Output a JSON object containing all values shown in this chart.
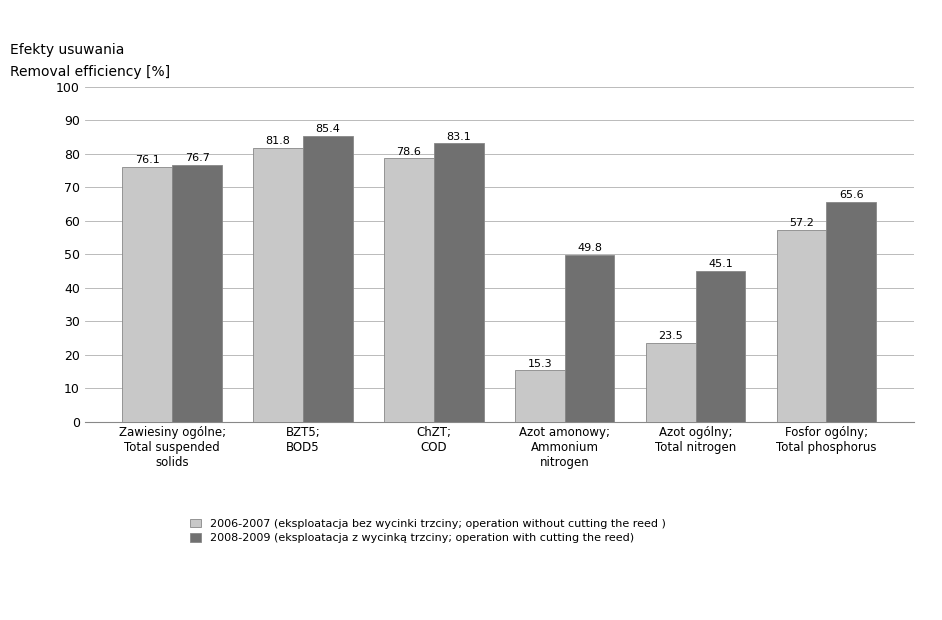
{
  "title_line1": "Efekty usuwania",
  "title_line2": "Removal efficiency [%]",
  "categories": [
    "Zawiesiny ogólne;\nTotal suspended\nsolids",
    "BZT5;\nBOD5",
    "ChZT;\nCOD",
    "Azot amonowy;\nAmmonium\nnitrogen",
    "Azot ogólny;\nTotal nitrogen",
    "Fosfor ogólny;\nTotal phosphorus"
  ],
  "series1_values": [
    76.1,
    81.8,
    78.6,
    15.3,
    23.5,
    57.2
  ],
  "series2_values": [
    76.7,
    85.4,
    83.1,
    49.8,
    45.1,
    65.6
  ],
  "series1_color": "#c8c8c8",
  "series2_color": "#707070",
  "series1_label": "2006-2007 (eksploatacja bez wycinki trzciny; operation without cutting the reed )",
  "series2_label": "2008-2009 (eksploatacja z wycinką trzciny; operation with cutting the reed)",
  "ylim": [
    0,
    100
  ],
  "yticks": [
    0,
    10,
    20,
    30,
    40,
    50,
    60,
    70,
    80,
    90,
    100
  ],
  "bar_width": 0.38,
  "background_color": "#ffffff",
  "grid_color": "#b0b0b0",
  "font_size_labels": 9,
  "font_size_title": 10,
  "font_size_bar_values": 8,
  "font_size_legend": 8,
  "font_size_xticks": 8.5
}
